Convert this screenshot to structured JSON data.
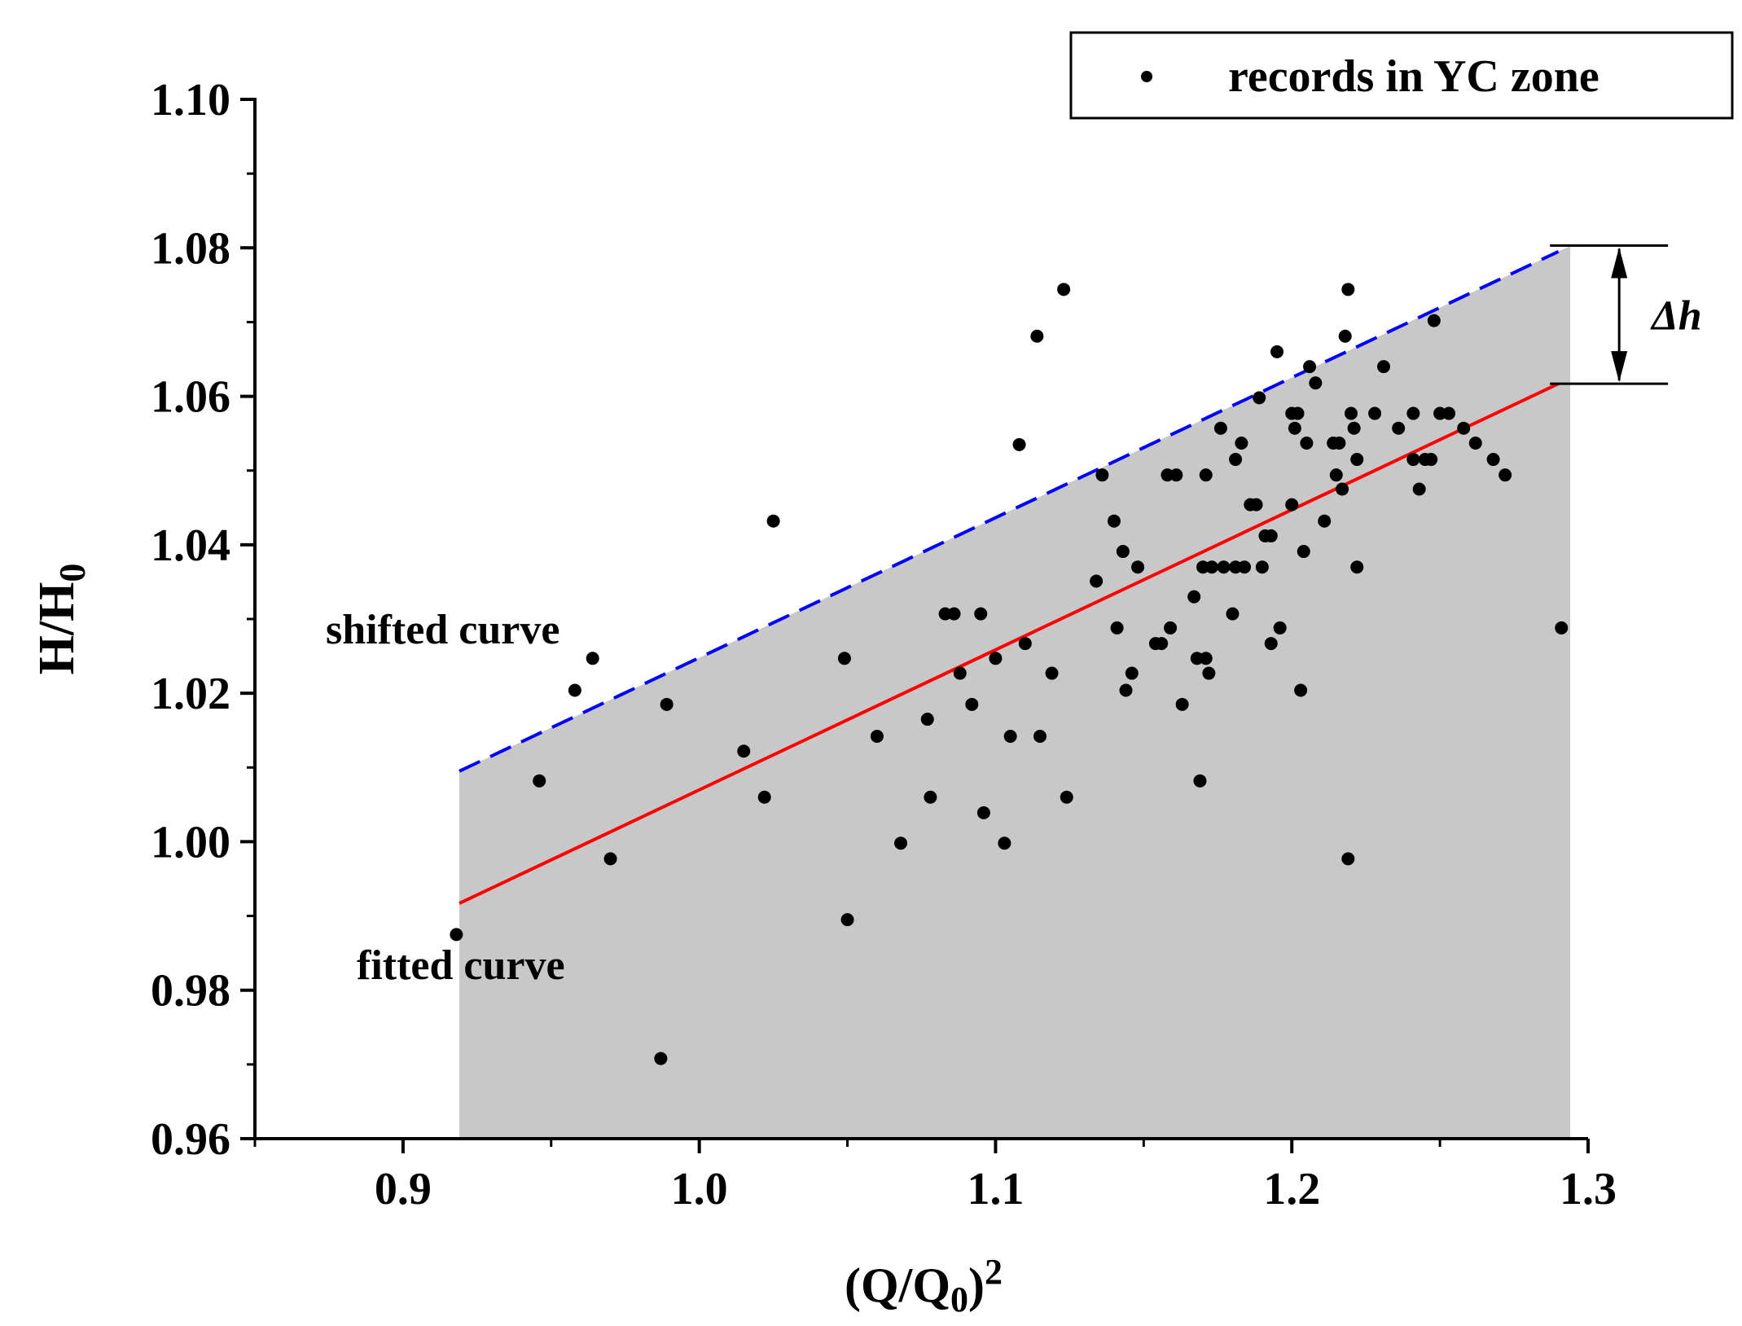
{
  "chart_data": {
    "type": "scatter",
    "title": "",
    "xlabel": {
      "base": "(Q/Q",
      "sub": "0",
      "tail": ")",
      "sup": "2"
    },
    "ylabel": {
      "base": "H/H",
      "sub": "0"
    },
    "xlim": [
      0.85,
      1.3
    ],
    "ylim": [
      0.96,
      1.1
    ],
    "xticks": [
      0.9,
      1.0,
      1.1,
      1.2,
      1.3
    ],
    "xtick_labels": [
      "0.9",
      "1.0",
      "1.1",
      "1.2",
      "1.3"
    ],
    "yticks": [
      0.96,
      0.98,
      1.0,
      1.02,
      1.04,
      1.06,
      1.08,
      1.1
    ],
    "ytick_labels": [
      "0.96",
      "0.98",
      "1.00",
      "1.02",
      "1.04",
      "1.06",
      "1.08",
      "1.10"
    ],
    "legend": {
      "position": "top-right",
      "entries": [
        "records in YC zone"
      ]
    },
    "annotations": {
      "shifted": "shifted curve",
      "fitted": "fitted curve",
      "delta": "Δh"
    },
    "fitted_curve": {
      "x": [
        0.919,
        1.29
      ],
      "y": [
        0.9917,
        1.0617
      ],
      "color": "#ff0000"
    },
    "shifted_curve": {
      "x": [
        0.919,
        1.29
      ],
      "y": [
        1.0095,
        1.0795
      ],
      "color": "#0000ff"
    },
    "shaded_region": {
      "x": [
        0.919,
        1.294
      ],
      "y_floor": 0.96,
      "color": "#c8c8c8"
    },
    "delta_marker": {
      "x": 1.294,
      "y_top": 1.0803,
      "y_bottom": 1.0617
    },
    "series": [
      {
        "name": "records in YC zone",
        "color": "#000000",
        "points": [
          [
            0.918,
            0.9875
          ],
          [
            0.946,
            1.0082
          ],
          [
            0.958,
            1.0204
          ],
          [
            0.964,
            1.0247
          ],
          [
            0.97,
            0.9977
          ],
          [
            0.987,
            0.9708
          ],
          [
            0.989,
            1.0185
          ],
          [
            1.015,
            1.0122
          ],
          [
            1.022,
            1.006
          ],
          [
            1.025,
            1.0432
          ],
          [
            1.049,
            1.0247
          ],
          [
            1.05,
            0.9895
          ],
          [
            1.06,
            1.0142
          ],
          [
            1.068,
            0.9998
          ],
          [
            1.077,
            1.0165
          ],
          [
            1.078,
            1.006
          ],
          [
            1.083,
            1.0307
          ],
          [
            1.086,
            1.0307
          ],
          [
            1.088,
            1.0227
          ],
          [
            1.092,
            1.0185
          ],
          [
            1.095,
            1.0307
          ],
          [
            1.096,
            1.0039
          ],
          [
            1.1,
            1.0247
          ],
          [
            1.103,
            0.9998
          ],
          [
            1.105,
            1.0142
          ],
          [
            1.108,
            1.0535
          ],
          [
            1.11,
            1.0267
          ],
          [
            1.114,
            1.0681
          ],
          [
            1.115,
            1.0142
          ],
          [
            1.119,
            1.0227
          ],
          [
            1.123,
            1.0744
          ],
          [
            1.124,
            1.006
          ],
          [
            1.134,
            1.0351
          ],
          [
            1.136,
            1.0494
          ],
          [
            1.14,
            1.0432
          ],
          [
            1.141,
            1.0288
          ],
          [
            1.143,
            1.0391
          ],
          [
            1.144,
            1.0204
          ],
          [
            1.146,
            1.0227
          ],
          [
            1.148,
            1.037
          ],
          [
            1.154,
            1.0267
          ],
          [
            1.156,
            1.0267
          ],
          [
            1.158,
            1.0494
          ],
          [
            1.159,
            1.0288
          ],
          [
            1.161,
            1.0494
          ],
          [
            1.163,
            1.0185
          ],
          [
            1.167,
            1.033
          ],
          [
            1.168,
            1.0247
          ],
          [
            1.169,
            1.0082
          ],
          [
            1.17,
            1.037
          ],
          [
            1.171,
            1.0494
          ],
          [
            1.171,
            1.0247
          ],
          [
            1.172,
            1.0227
          ],
          [
            1.173,
            1.037
          ],
          [
            1.176,
            1.0557
          ],
          [
            1.177,
            1.037
          ],
          [
            1.18,
            1.0307
          ],
          [
            1.181,
            1.037
          ],
          [
            1.181,
            1.0515
          ],
          [
            1.183,
            1.0537
          ],
          [
            1.184,
            1.037
          ],
          [
            1.186,
            1.0454
          ],
          [
            1.188,
            1.0454
          ],
          [
            1.189,
            1.0598
          ],
          [
            1.19,
            1.037
          ],
          [
            1.191,
            1.0412
          ],
          [
            1.193,
            1.0412
          ],
          [
            1.193,
            1.0267
          ],
          [
            1.195,
            1.066
          ],
          [
            1.196,
            1.0288
          ],
          [
            1.2,
            1.0454
          ],
          [
            1.2,
            1.0577
          ],
          [
            1.201,
            1.0557
          ],
          [
            1.202,
            1.0577
          ],
          [
            1.203,
            1.0204
          ],
          [
            1.204,
            1.0391
          ],
          [
            1.205,
            1.0537
          ],
          [
            1.206,
            1.064
          ],
          [
            1.208,
            1.0618
          ],
          [
            1.211,
            1.0432
          ],
          [
            1.214,
            1.0537
          ],
          [
            1.215,
            1.0494
          ],
          [
            1.216,
            1.0537
          ],
          [
            1.217,
            1.0475
          ],
          [
            1.218,
            1.0681
          ],
          [
            1.219,
            1.0744
          ],
          [
            1.219,
            0.9977
          ],
          [
            1.22,
            1.0577
          ],
          [
            1.221,
            1.0557
          ],
          [
            1.222,
            1.0515
          ],
          [
            1.222,
            1.037
          ],
          [
            1.228,
            1.0577
          ],
          [
            1.231,
            1.064
          ],
          [
            1.236,
            1.0557
          ],
          [
            1.241,
            1.0515
          ],
          [
            1.241,
            1.0577
          ],
          [
            1.243,
            1.0475
          ],
          [
            1.245,
            1.0515
          ],
          [
            1.247,
            1.0515
          ],
          [
            1.248,
            1.0702
          ],
          [
            1.25,
            1.0577
          ],
          [
            1.253,
            1.0577
          ],
          [
            1.258,
            1.0557
          ],
          [
            1.262,
            1.0537
          ],
          [
            1.268,
            1.0515
          ],
          [
            1.272,
            1.0494
          ],
          [
            1.291,
            1.0288
          ]
        ]
      }
    ]
  }
}
